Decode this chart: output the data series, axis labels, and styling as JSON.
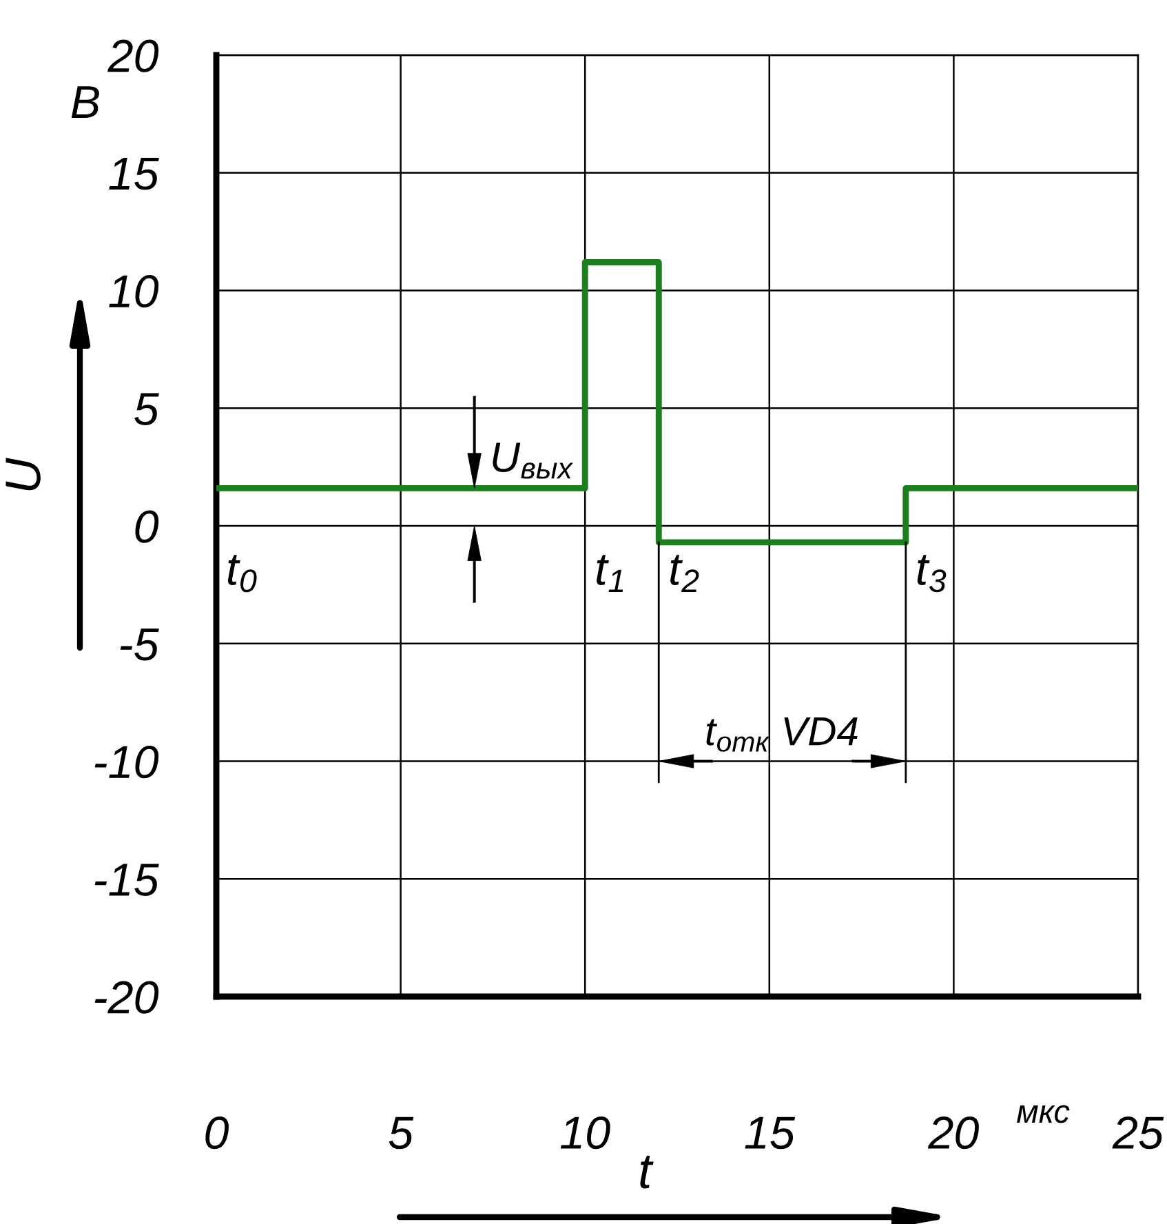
{
  "chart_data": {
    "type": "step",
    "x": [
      0,
      10,
      12,
      18.7,
      25
    ],
    "series": [
      {
        "color": "#1e7d1e",
        "values": [
          1.6,
          11.2,
          -0.7,
          1.6,
          1.6
        ]
      }
    ],
    "xlabel": "t",
    "ylabel": "U",
    "xlim": [
      0,
      25
    ],
    "xticks": [
      0,
      5,
      10,
      15,
      20,
      25
    ],
    "ylim": [
      -20,
      20
    ],
    "yticks": [
      -20,
      -15,
      -10,
      -5,
      0,
      5,
      10,
      15,
      20
    ],
    "grid": true,
    "annotations": [
      "В",
      "мкс",
      "t$_{отк}$ VD4",
      {
        "text": "t$_{0}$",
        "x": 0,
        "y": 1.6
      },
      {
        "text": "t$_{1}$",
        "x": 10,
        "y": 1.6
      },
      {
        "text": "t$_{2}$",
        "x": 12,
        "y": -0.7
      },
      {
        "text": "t$_{3}$",
        "x": 18.7,
        "y": -0.7
      },
      {
        "text": "U$_{вых}$",
        "x": 7,
        "y": 1.6
      }
    ]
  }
}
